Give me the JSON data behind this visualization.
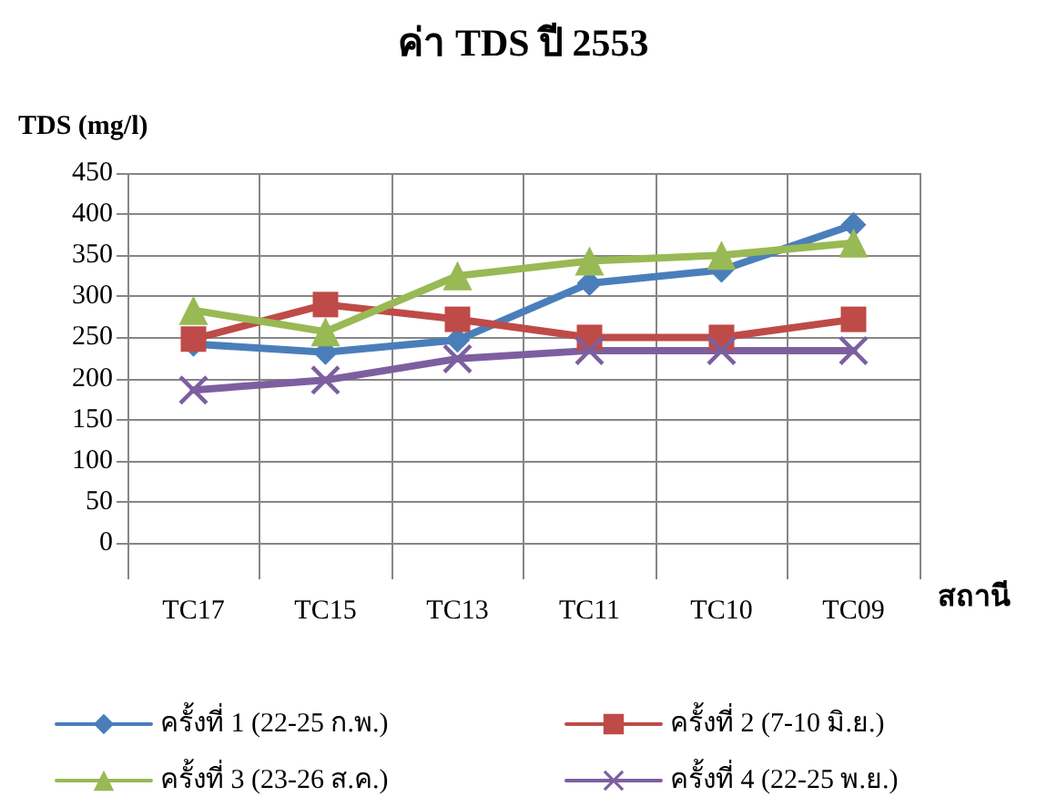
{
  "chart_data": {
    "type": "line",
    "title": "ค่า TDS ปี 2553",
    "ylabel": "TDS (mg/l)",
    "xlabel": "สถานี",
    "categories": [
      "TC17",
      "TC15",
      "TC13",
      "TC11",
      "TC10",
      "TC09"
    ],
    "series": [
      {
        "name": "ครั้งที่ 1 (22-25 ก.พ.)",
        "color": "#4a7ebb",
        "marker": "diamond",
        "values": [
          242,
          232,
          247,
          316,
          332,
          387
        ]
      },
      {
        "name": "ครั้งที่ 2 (7-10 มิ.ย.)",
        "color": "#be4b48",
        "marker": "square",
        "values": [
          248,
          290,
          272,
          250,
          250,
          272
        ]
      },
      {
        "name": "ครั้งที่ 3 (23-26 ส.ค.)",
        "color": "#98b954",
        "marker": "triangle",
        "values": [
          283,
          257,
          325,
          343,
          350,
          365
        ]
      },
      {
        "name": "ครั้งที่ 4 (22-25 พ.ย.)",
        "color": "#7d5fa0",
        "marker": "cross",
        "values": [
          186,
          198,
          224,
          234,
          234,
          234
        ]
      }
    ],
    "ylim": [
      0,
      450
    ],
    "yticks": [
      0,
      50,
      100,
      150,
      200,
      250,
      300,
      350,
      400,
      450
    ],
    "grid": true,
    "legend": "bottom",
    "line_style": "solid"
  }
}
